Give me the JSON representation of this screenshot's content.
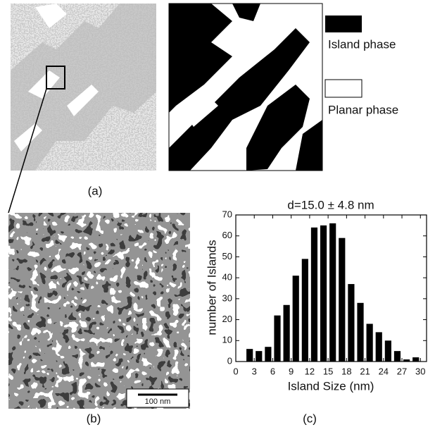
{
  "panel_labels": [
    "(a)",
    "(b)",
    "(c)"
  ],
  "legend": {
    "island": "Island phase",
    "planar": "Planar phase"
  },
  "scale_bar": "100 nm",
  "chart_data": {
    "type": "histogram",
    "title": "d=15.0 ± 4.8 nm",
    "x_label": "Island Size (nm)",
    "y_label": "number of Islands",
    "bins": [
      1.5,
      3,
      4.5,
      6,
      7.5,
      9,
      10.5,
      12,
      13.5,
      15,
      16.5,
      18,
      19.5,
      21,
      22.5,
      24,
      25.5,
      27,
      28.5,
      30
    ],
    "values": [
      6,
      5,
      7,
      22,
      27,
      41,
      49,
      64,
      65,
      66,
      59,
      37,
      28,
      18,
      14,
      10,
      5,
      1,
      2
    ],
    "color": "#000000",
    "xlim": [
      0,
      31
    ],
    "xticks": [
      0,
      3,
      6,
      9,
      12,
      15,
      18,
      21,
      24,
      27,
      30
    ],
    "ylim": [
      0,
      70
    ],
    "yticks": [
      0,
      10,
      20,
      30,
      40,
      50,
      60,
      70
    ]
  }
}
